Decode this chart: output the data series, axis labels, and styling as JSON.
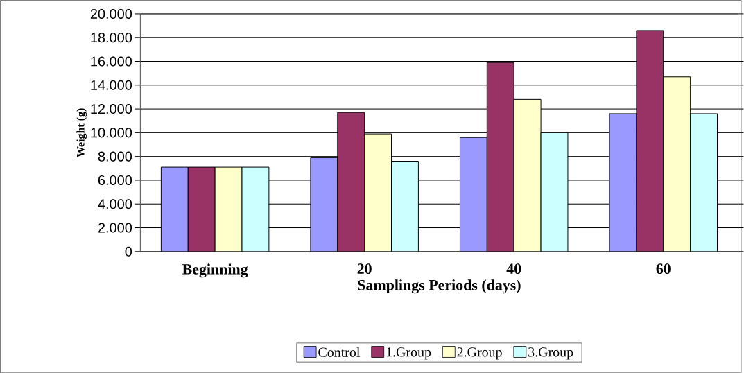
{
  "chart_data": {
    "type": "bar",
    "xlabel": "Samplings Periods (days)",
    "ylabel": "Weight (g)",
    "categories": [
      "Beginning",
      "20",
      "40",
      "60"
    ],
    "series": [
      {
        "name": "Control",
        "color": "#9999ff",
        "values": [
          7100,
          7900,
          9600,
          11600
        ]
      },
      {
        "name": "1.Group",
        "color": "#993366",
        "values": [
          7100,
          11700,
          15900,
          18600
        ]
      },
      {
        "name": "2.Group",
        "color": "#ffffcc",
        "values": [
          7100,
          9900,
          12800,
          14700
        ]
      },
      {
        "name": "3.Group",
        "color": "#ccffff",
        "values": [
          7100,
          7600,
          10000,
          11600
        ]
      }
    ],
    "ylim": [
      0,
      20000
    ],
    "yticks": [
      0,
      {
        "value": 2000,
        "label": "2.000"
      },
      {
        "value": 4000,
        "label": "4.000"
      },
      {
        "value": 6000,
        "label": "6.000"
      },
      {
        "value": 8000,
        "label": "8.000"
      },
      {
        "value": 10000,
        "label": "10.000"
      },
      {
        "value": 12000,
        "label": "12.000"
      },
      {
        "value": 14000,
        "label": "14.000"
      },
      {
        "value": 16000,
        "label": "16.000"
      },
      {
        "value": 18000,
        "label": "18.000"
      },
      {
        "value": 20000,
        "label": "20.000"
      }
    ],
    "grid": "y",
    "legend": "bottom"
  }
}
